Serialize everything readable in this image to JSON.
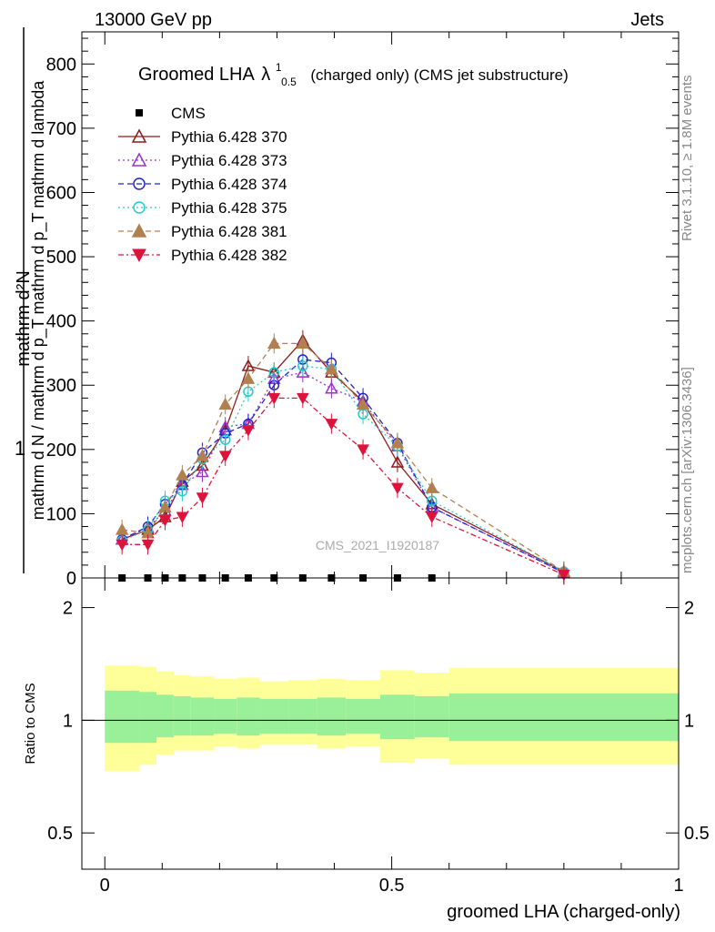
{
  "header": {
    "left": "13000 GeV pp",
    "right": "Jets"
  },
  "side_labels": {
    "rivet": "Rivet 3.1.10, ≥ 1.8M events",
    "mcplots": "mcplots.cern.ch [arXiv:1306.3436]"
  },
  "watermark": "CMS_2021_I1920187",
  "colors": {
    "cms": "#000000",
    "p370": "#8b1a1a",
    "p373": "#9932cc",
    "p374": "#2222cc",
    "p375": "#22cccc",
    "p381": "#b08050",
    "p382": "#dc143c",
    "band_inner": "#99f099",
    "band_outer": "#ffff99"
  },
  "chart_data": [
    {
      "type": "line",
      "title_main": "Groomed LHA",
      "title_symbol": "λ",
      "title_sup": "1",
      "title_sub": "0.5",
      "title_rest": "(charged only) (CMS jet substructure)",
      "ylabel_top": "1",
      "ylabel_num": "mathrm d²N",
      "ylabel_den": "mathrm d N / mathrm d p_T mathrm d p_T mathrm d lambda",
      "ylim": [
        0,
        850
      ],
      "xlim": [
        -0.04,
        1.0
      ],
      "yticks": [
        0,
        100,
        200,
        300,
        400,
        500,
        600,
        700,
        800
      ],
      "ytick_labels": [
        "0",
        "100",
        "200",
        "300",
        "400",
        "500",
        "600",
        "700",
        "800"
      ],
      "x": [
        0.03,
        0.075,
        0.105,
        0.135,
        0.17,
        0.21,
        0.25,
        0.295,
        0.345,
        0.395,
        0.45,
        0.51,
        0.57,
        0.8
      ],
      "series": [
        {
          "name": "CMS",
          "marker": "square",
          "dash": "none",
          "values": [
            0,
            0,
            0,
            0,
            0,
            0,
            0,
            0,
            0,
            0,
            0,
            0,
            0,
            null
          ]
        },
        {
          "name": "Pythia 6.428 370",
          "marker": "triangle-open",
          "dash": "solid",
          "values": [
            60,
            75,
            95,
            150,
            175,
            230,
            330,
            320,
            370,
            320,
            275,
            180,
            115,
            10
          ]
        },
        {
          "name": "Pythia 6.428 373",
          "marker": "triangle-open",
          "dash": "dotted",
          "values": [
            60,
            78,
            105,
            145,
            165,
            235,
            240,
            310,
            320,
            295,
            275,
            205,
            110,
            8
          ]
        },
        {
          "name": "Pythia 6.428 374",
          "marker": "circle-open",
          "dash": "dashed",
          "values": [
            60,
            80,
            115,
            145,
            195,
            225,
            240,
            300,
            340,
            335,
            280,
            210,
            110,
            8
          ]
        },
        {
          "name": "Pythia 6.428 375",
          "marker": "circle-open",
          "dash": "dotted",
          "values": [
            58,
            75,
            120,
            135,
            185,
            215,
            290,
            320,
            330,
            325,
            255,
            205,
            120,
            10
          ]
        },
        {
          "name": "Pythia 6.428 381",
          "marker": "triangle-filled",
          "dash": "dashed",
          "values": [
            75,
            70,
            110,
            160,
            190,
            270,
            310,
            365,
            365,
            325,
            270,
            210,
            140,
            10
          ]
        },
        {
          "name": "Pythia 6.428 382",
          "marker": "triangle-down-filled",
          "dash": "dashdot",
          "values": [
            52,
            52,
            90,
            95,
            125,
            190,
            230,
            280,
            280,
            240,
            200,
            140,
            95,
            5
          ]
        }
      ]
    },
    {
      "type": "area",
      "ylabel": "Ratio to CMS",
      "xlabel": "groomed LHA (charged-only)",
      "log_scale_y": true,
      "ylim": [
        0.4,
        2.4
      ],
      "yticks": [
        0.5,
        1,
        2
      ],
      "ytick_labels": [
        "0.5",
        "1",
        "2"
      ],
      "xticks": [
        0,
        0.5,
        1
      ],
      "xtick_labels": [
        "0",
        "0.5",
        "1"
      ],
      "reference_line": 1,
      "bins": [
        {
          "lo": 0.0,
          "hi": 0.06,
          "inner": [
            0.87,
            1.2
          ],
          "outer": [
            0.73,
            1.4
          ]
        },
        {
          "lo": 0.06,
          "hi": 0.09,
          "inner": [
            0.87,
            1.19
          ],
          "outer": [
            0.76,
            1.39
          ]
        },
        {
          "lo": 0.09,
          "hi": 0.12,
          "inner": [
            0.9,
            1.17
          ],
          "outer": [
            0.81,
            1.35
          ]
        },
        {
          "lo": 0.12,
          "hi": 0.15,
          "inner": [
            0.91,
            1.16
          ],
          "outer": [
            0.83,
            1.32
          ]
        },
        {
          "lo": 0.15,
          "hi": 0.19,
          "inner": [
            0.91,
            1.15
          ],
          "outer": [
            0.83,
            1.31
          ]
        },
        {
          "lo": 0.19,
          "hi": 0.23,
          "inner": [
            0.92,
            1.14
          ],
          "outer": [
            0.85,
            1.29
          ]
        },
        {
          "lo": 0.23,
          "hi": 0.27,
          "inner": [
            0.91,
            1.15
          ],
          "outer": [
            0.84,
            1.3
          ]
        },
        {
          "lo": 0.27,
          "hi": 0.32,
          "inner": [
            0.92,
            1.14
          ],
          "outer": [
            0.86,
            1.27
          ]
        },
        {
          "lo": 0.32,
          "hi": 0.37,
          "inner": [
            0.92,
            1.14
          ],
          "outer": [
            0.86,
            1.28
          ]
        },
        {
          "lo": 0.37,
          "hi": 0.42,
          "inner": [
            0.91,
            1.15
          ],
          "outer": [
            0.84,
            1.29
          ]
        },
        {
          "lo": 0.42,
          "hi": 0.48,
          "inner": [
            0.92,
            1.14
          ],
          "outer": [
            0.85,
            1.28
          ]
        },
        {
          "lo": 0.48,
          "hi": 0.54,
          "inner": [
            0.89,
            1.17
          ],
          "outer": [
            0.77,
            1.36
          ]
        },
        {
          "lo": 0.54,
          "hi": 0.6,
          "inner": [
            0.9,
            1.16
          ],
          "outer": [
            0.79,
            1.34
          ]
        },
        {
          "lo": 0.6,
          "hi": 1.0,
          "inner": [
            0.88,
            1.18
          ],
          "outer": [
            0.76,
            1.38
          ]
        }
      ]
    }
  ]
}
